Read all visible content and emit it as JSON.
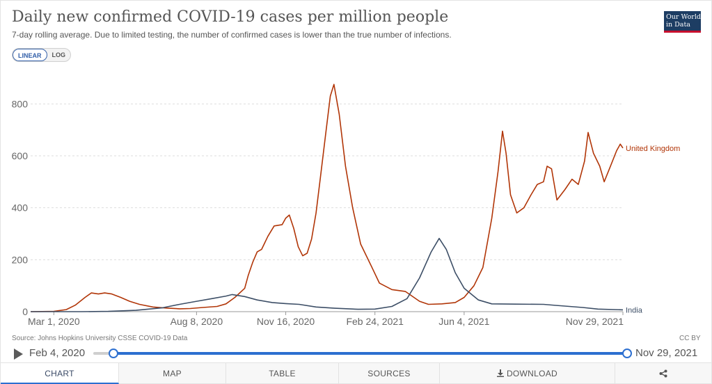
{
  "header": {
    "title": "Daily new confirmed COVID-19 cases per million people",
    "subtitle": "7-day rolling average. Due to limited testing, the number of confirmed cases is lower than the true number of infections.",
    "logo_text": "Our World in Data"
  },
  "scale_toggle": {
    "linear_label": "LINEAR",
    "log_label": "LOG",
    "selected": "LINEAR"
  },
  "footer": {
    "source": "Source: Johns Hopkins University CSSE COVID-19 Data",
    "license": "CC BY"
  },
  "timeline": {
    "start_label": "Feb 4, 2020",
    "end_label": "Nov 29, 2021"
  },
  "tabs": {
    "chart": "CHART",
    "map": "MAP",
    "table": "TABLE",
    "sources": "SOURCES",
    "download": "DOWNLOAD",
    "selected": "CHART"
  },
  "colors": {
    "united_kingdom": "#b13507",
    "india": "#3c4e66",
    "accent": "#2c6fd0",
    "logo_bg": "#1d3d63",
    "logo_bar": "#c8102e"
  },
  "icons": {
    "play": "play-icon",
    "download": "download-icon",
    "share": "share-icon"
  },
  "chart_data": {
    "type": "line",
    "title": "Daily new confirmed COVID-19 cases per million people",
    "xlabel": "",
    "ylabel": "",
    "ylim": [
      0,
      900
    ],
    "xlim": [
      "2020-02-04",
      "2021-11-29"
    ],
    "yticks": [
      0,
      200,
      400,
      600,
      800
    ],
    "xticks": [
      {
        "date": "2020-03-01",
        "label": "Mar 1, 2020"
      },
      {
        "date": "2020-08-08",
        "label": "Aug 8, 2020"
      },
      {
        "date": "2020-11-16",
        "label": "Nov 16, 2020"
      },
      {
        "date": "2021-02-24",
        "label": "Feb 24, 2021"
      },
      {
        "date": "2021-06-04",
        "label": "Jun 4, 2021"
      },
      {
        "date": "2021-11-29",
        "label": "Nov 29, 2021"
      }
    ],
    "grid": true,
    "legend": "line end labels",
    "series": [
      {
        "name": "United Kingdom",
        "points": [
          [
            "2020-02-04",
            0
          ],
          [
            "2020-03-01",
            1
          ],
          [
            "2020-03-15",
            8
          ],
          [
            "2020-03-25",
            25
          ],
          [
            "2020-04-05",
            55
          ],
          [
            "2020-04-12",
            72
          ],
          [
            "2020-04-20",
            68
          ],
          [
            "2020-04-27",
            72
          ],
          [
            "2020-05-05",
            68
          ],
          [
            "2020-05-15",
            55
          ],
          [
            "2020-05-25",
            40
          ],
          [
            "2020-06-05",
            28
          ],
          [
            "2020-06-20",
            18
          ],
          [
            "2020-07-05",
            14
          ],
          [
            "2020-07-20",
            11
          ],
          [
            "2020-08-01",
            12
          ],
          [
            "2020-08-15",
            16
          ],
          [
            "2020-08-31",
            20
          ],
          [
            "2020-09-10",
            30
          ],
          [
            "2020-09-20",
            55
          ],
          [
            "2020-10-01",
            90
          ],
          [
            "2020-10-05",
            140
          ],
          [
            "2020-10-10",
            190
          ],
          [
            "2020-10-15",
            230
          ],
          [
            "2020-10-20",
            240
          ],
          [
            "2020-10-27",
            290
          ],
          [
            "2020-11-03",
            330
          ],
          [
            "2020-11-12",
            335
          ],
          [
            "2020-11-16",
            360
          ],
          [
            "2020-11-20",
            372
          ],
          [
            "2020-11-25",
            320
          ],
          [
            "2020-11-30",
            250
          ],
          [
            "2020-12-05",
            215
          ],
          [
            "2020-12-10",
            225
          ],
          [
            "2020-12-15",
            280
          ],
          [
            "2020-12-20",
            380
          ],
          [
            "2020-12-25",
            520
          ],
          [
            "2020-12-31",
            690
          ],
          [
            "2021-01-05",
            830
          ],
          [
            "2021-01-09",
            875
          ],
          [
            "2021-01-15",
            760
          ],
          [
            "2021-01-22",
            560
          ],
          [
            "2021-01-30",
            400
          ],
          [
            "2021-02-08",
            260
          ],
          [
            "2021-02-20",
            175
          ],
          [
            "2021-03-01",
            110
          ],
          [
            "2021-03-15",
            85
          ],
          [
            "2021-03-30",
            78
          ],
          [
            "2021-04-15",
            40
          ],
          [
            "2021-04-25",
            28
          ],
          [
            "2021-05-10",
            30
          ],
          [
            "2021-05-25",
            35
          ],
          [
            "2021-06-04",
            55
          ],
          [
            "2021-06-15",
            100
          ],
          [
            "2021-06-25",
            170
          ],
          [
            "2021-07-05",
            360
          ],
          [
            "2021-07-12",
            540
          ],
          [
            "2021-07-17",
            695
          ],
          [
            "2021-07-21",
            610
          ],
          [
            "2021-07-26",
            450
          ],
          [
            "2021-08-02",
            380
          ],
          [
            "2021-08-10",
            400
          ],
          [
            "2021-08-18",
            450
          ],
          [
            "2021-08-25",
            490
          ],
          [
            "2021-09-01",
            500
          ],
          [
            "2021-09-05",
            560
          ],
          [
            "2021-09-10",
            550
          ],
          [
            "2021-09-16",
            430
          ],
          [
            "2021-09-25",
            470
          ],
          [
            "2021-10-03",
            510
          ],
          [
            "2021-10-10",
            490
          ],
          [
            "2021-10-17",
            580
          ],
          [
            "2021-10-21",
            690
          ],
          [
            "2021-10-27",
            610
          ],
          [
            "2021-11-03",
            560
          ],
          [
            "2021-11-08",
            500
          ],
          [
            "2021-11-15",
            560
          ],
          [
            "2021-11-22",
            620
          ],
          [
            "2021-11-26",
            645
          ],
          [
            "2021-11-29",
            630
          ]
        ]
      },
      {
        "name": "India",
        "points": [
          [
            "2020-02-04",
            0
          ],
          [
            "2020-04-01",
            0
          ],
          [
            "2020-05-01",
            1
          ],
          [
            "2020-06-01",
            5
          ],
          [
            "2020-07-01",
            15
          ],
          [
            "2020-07-20",
            28
          ],
          [
            "2020-08-08",
            40
          ],
          [
            "2020-08-25",
            50
          ],
          [
            "2020-09-10",
            60
          ],
          [
            "2020-09-17",
            66
          ],
          [
            "2020-10-01",
            58
          ],
          [
            "2020-10-15",
            45
          ],
          [
            "2020-11-01",
            35
          ],
          [
            "2020-11-16",
            31
          ],
          [
            "2020-12-01",
            28
          ],
          [
            "2020-12-20",
            18
          ],
          [
            "2021-01-10",
            13
          ],
          [
            "2021-02-05",
            9
          ],
          [
            "2021-02-24",
            10
          ],
          [
            "2021-03-15",
            20
          ],
          [
            "2021-04-01",
            50
          ],
          [
            "2021-04-15",
            130
          ],
          [
            "2021-04-28",
            230
          ],
          [
            "2021-05-07",
            282
          ],
          [
            "2021-05-15",
            240
          ],
          [
            "2021-05-25",
            150
          ],
          [
            "2021-06-04",
            90
          ],
          [
            "2021-06-20",
            45
          ],
          [
            "2021-07-05",
            30
          ],
          [
            "2021-08-01",
            29
          ],
          [
            "2021-09-01",
            28
          ],
          [
            "2021-09-15",
            24
          ],
          [
            "2021-10-15",
            16
          ],
          [
            "2021-11-01",
            10
          ],
          [
            "2021-11-29",
            7
          ]
        ]
      }
    ]
  }
}
